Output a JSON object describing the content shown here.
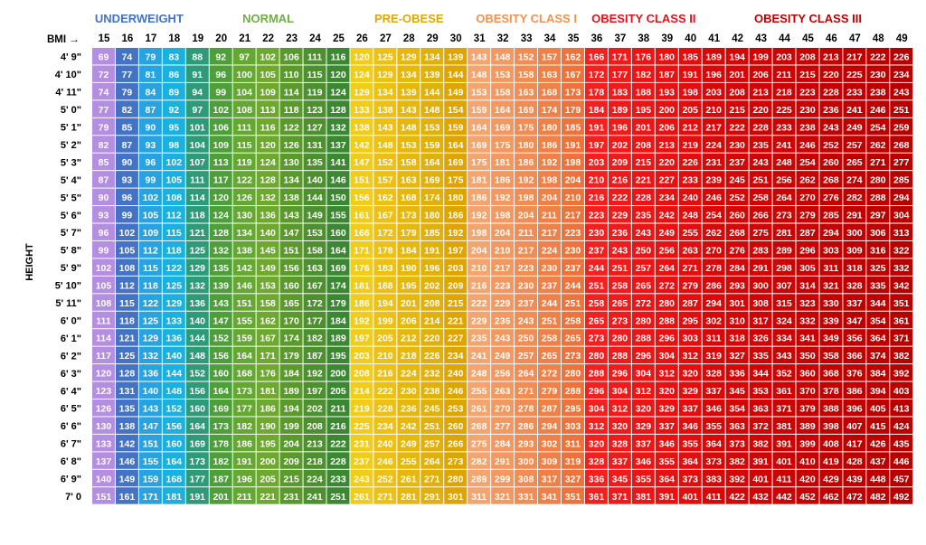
{
  "chart_data": {
    "type": "table",
    "title": "",
    "bmi_label": "BMI →",
    "ylabel": "HEIGHT",
    "bmi": [
      15,
      16,
      17,
      18,
      19,
      20,
      21,
      22,
      23,
      24,
      25,
      26,
      27,
      28,
      29,
      30,
      31,
      32,
      33,
      34,
      35,
      36,
      37,
      38,
      39,
      40,
      41,
      42,
      43,
      44,
      45,
      46,
      47,
      48,
      49
    ],
    "categories": [
      {
        "name": "UNDERWEIGHT",
        "from_bmi": 15,
        "to_bmi": 18,
        "color": "#4472c4"
      },
      {
        "name": "NORMAL",
        "from_bmi": 19,
        "to_bmi": 25,
        "color": "#70ad47"
      },
      {
        "name": "PRE-OBESE",
        "from_bmi": 26,
        "to_bmi": 30,
        "color": "#e0a800"
      },
      {
        "name": "OBESITY CLASS I",
        "from_bmi": 31,
        "to_bmi": 35,
        "color": "#f4914e"
      },
      {
        "name": "OBESITY CLASS II",
        "from_bmi": 36,
        "to_bmi": 40,
        "color": "#e8101a"
      },
      {
        "name": "OBESITY CLASS III",
        "from_bmi": 41,
        "to_bmi": 49,
        "color": "#c00000"
      }
    ],
    "column_colors": [
      "#b48ee0",
      "#4472c4",
      "#29a3df",
      "#1ab0e0",
      "#2e9a78",
      "#4e9e3a",
      "#64a733",
      "#6ea82e",
      "#5a9a2c",
      "#4e9030",
      "#3c8832",
      "#f2cc1a",
      "#ecc014",
      "#e6b80e",
      "#e0b00c",
      "#dea400",
      "#f4a46e",
      "#f29860",
      "#f08c54",
      "#ee8048",
      "#ec743c",
      "#f42020",
      "#f01a1a",
      "#ec1414",
      "#e81010",
      "#e40c0c",
      "#d80808",
      "#d40606",
      "#d00404",
      "#cc0303",
      "#c80202",
      "#c40101",
      "#c00000",
      "#bc0000",
      "#b80000"
    ],
    "rows": [
      {
        "height": "4' 9\"",
        "weights": [
          69,
          74,
          79,
          83,
          88,
          92,
          97,
          102,
          106,
          111,
          116,
          120,
          125,
          129,
          134,
          139,
          143,
          148,
          152,
          157,
          162,
          166,
          171,
          176,
          180,
          185,
          189,
          194,
          199,
          203,
          208,
          213,
          217,
          222,
          226
        ]
      },
      {
        "height": "4' 10\"",
        "weights": [
          72,
          77,
          81,
          86,
          91,
          96,
          100,
          105,
          110,
          115,
          120,
          124,
          129,
          134,
          139,
          144,
          148,
          153,
          158,
          163,
          167,
          172,
          177,
          182,
          187,
          191,
          196,
          201,
          206,
          211,
          215,
          220,
          225,
          230,
          234
        ]
      },
      {
        "height": "4' 11\"",
        "weights": [
          74,
          79,
          84,
          89,
          94,
          99,
          104,
          109,
          114,
          119,
          124,
          129,
          134,
          139,
          144,
          149,
          153,
          158,
          163,
          168,
          173,
          178,
          183,
          188,
          193,
          198,
          203,
          208,
          213,
          218,
          223,
          228,
          233,
          238,
          243
        ]
      },
      {
        "height": "5' 0\"",
        "weights": [
          77,
          82,
          87,
          92,
          97,
          102,
          108,
          113,
          118,
          123,
          128,
          133,
          138,
          143,
          148,
          154,
          159,
          164,
          169,
          174,
          179,
          184,
          189,
          195,
          200,
          205,
          210,
          215,
          220,
          225,
          230,
          236,
          241,
          246,
          251
        ]
      },
      {
        "height": "5' 1\"",
        "weights": [
          79,
          85,
          90,
          95,
          101,
          106,
          111,
          116,
          122,
          127,
          132,
          138,
          143,
          148,
          153,
          159,
          164,
          169,
          175,
          180,
          185,
          191,
          196,
          201,
          206,
          212,
          217,
          222,
          228,
          233,
          238,
          243,
          249,
          254,
          259
        ]
      },
      {
        "height": "5' 2\"",
        "weights": [
          82,
          87,
          93,
          98,
          104,
          109,
          115,
          120,
          126,
          131,
          137,
          142,
          148,
          153,
          159,
          164,
          169,
          175,
          180,
          186,
          191,
          197,
          202,
          208,
          213,
          219,
          224,
          230,
          235,
          241,
          246,
          252,
          257,
          262,
          268
        ]
      },
      {
        "height": "5' 3\"",
        "weights": [
          85,
          90,
          96,
          102,
          107,
          113,
          119,
          124,
          130,
          135,
          141,
          147,
          152,
          158,
          164,
          169,
          175,
          181,
          186,
          192,
          198,
          203,
          209,
          215,
          220,
          226,
          231,
          237,
          243,
          248,
          254,
          260,
          265,
          271,
          277
        ]
      },
      {
        "height": "5' 4\"",
        "weights": [
          87,
          93,
          99,
          105,
          111,
          117,
          122,
          128,
          134,
          140,
          146,
          151,
          157,
          163,
          169,
          175,
          181,
          186,
          192,
          198,
          204,
          210,
          216,
          221,
          227,
          233,
          239,
          245,
          251,
          256,
          262,
          268,
          274,
          280,
          285
        ]
      },
      {
        "height": "5' 5\"",
        "weights": [
          90,
          96,
          102,
          108,
          114,
          120,
          126,
          132,
          138,
          144,
          150,
          156,
          162,
          168,
          174,
          180,
          186,
          192,
          198,
          204,
          210,
          216,
          222,
          228,
          234,
          240,
          246,
          252,
          258,
          264,
          270,
          276,
          282,
          288,
          294
        ]
      },
      {
        "height": "5' 6\"",
        "weights": [
          93,
          99,
          105,
          112,
          118,
          124,
          130,
          136,
          143,
          149,
          155,
          161,
          167,
          173,
          180,
          186,
          192,
          198,
          204,
          211,
          217,
          223,
          229,
          235,
          242,
          248,
          254,
          260,
          266,
          273,
          279,
          285,
          291,
          297,
          304
        ]
      },
      {
        "height": "5' 7\"",
        "weights": [
          96,
          102,
          109,
          115,
          121,
          128,
          134,
          140,
          147,
          153,
          160,
          166,
          172,
          179,
          185,
          192,
          198,
          204,
          211,
          217,
          223,
          230,
          236,
          243,
          249,
          255,
          262,
          268,
          275,
          281,
          287,
          294,
          300,
          306,
          313
        ]
      },
      {
        "height": "5' 8\"",
        "weights": [
          99,
          105,
          112,
          118,
          125,
          132,
          138,
          145,
          151,
          158,
          164,
          171,
          178,
          184,
          191,
          197,
          204,
          210,
          217,
          224,
          230,
          237,
          243,
          250,
          256,
          263,
          270,
          276,
          283,
          289,
          296,
          303,
          309,
          316,
          322
        ]
      },
      {
        "height": "5' 9\"",
        "weights": [
          102,
          108,
          115,
          122,
          129,
          135,
          142,
          149,
          156,
          163,
          169,
          176,
          183,
          190,
          196,
          203,
          210,
          217,
          223,
          230,
          237,
          244,
          251,
          257,
          264,
          271,
          278,
          284,
          291,
          298,
          305,
          311,
          318,
          325,
          332
        ]
      },
      {
        "height": "5' 10\"",
        "weights": [
          105,
          112,
          118,
          125,
          132,
          139,
          146,
          153,
          160,
          167,
          174,
          181,
          188,
          195,
          202,
          209,
          216,
          223,
          230,
          237,
          244,
          251,
          258,
          265,
          272,
          279,
          286,
          293,
          300,
          307,
          314,
          321,
          328,
          335,
          342
        ]
      },
      {
        "height": "5' 11\"",
        "weights": [
          108,
          115,
          122,
          129,
          136,
          143,
          151,
          158,
          165,
          172,
          179,
          186,
          194,
          201,
          208,
          215,
          222,
          229,
          237,
          244,
          251,
          258,
          265,
          272,
          280,
          287,
          294,
          301,
          308,
          315,
          323,
          330,
          337,
          344,
          351
        ]
      },
      {
        "height": "6' 0\"",
        "weights": [
          111,
          118,
          125,
          133,
          140,
          147,
          155,
          162,
          170,
          177,
          184,
          192,
          199,
          206,
          214,
          221,
          229,
          236,
          243,
          251,
          258,
          265,
          273,
          280,
          288,
          295,
          302,
          310,
          317,
          324,
          332,
          339,
          347,
          354,
          361
        ]
      },
      {
        "height": "6' 1\"",
        "weights": [
          114,
          121,
          129,
          136,
          144,
          152,
          159,
          167,
          174,
          182,
          189,
          197,
          205,
          212,
          220,
          227,
          235,
          243,
          250,
          258,
          265,
          273,
          280,
          288,
          296,
          303,
          311,
          318,
          326,
          334,
          341,
          349,
          356,
          364,
          371
        ]
      },
      {
        "height": "6' 2\"",
        "weights": [
          117,
          125,
          132,
          140,
          148,
          156,
          164,
          171,
          179,
          187,
          195,
          203,
          210,
          218,
          226,
          234,
          241,
          249,
          257,
          265,
          273,
          280,
          288,
          296,
          304,
          312,
          319,
          327,
          335,
          343,
          350,
          358,
          366,
          374,
          382
        ]
      },
      {
        "height": "6' 3\"",
        "weights": [
          120,
          128,
          136,
          144,
          152,
          160,
          168,
          176,
          184,
          192,
          200,
          208,
          216,
          224,
          232,
          240,
          248,
          256,
          264,
          272,
          280,
          288,
          296,
          304,
          312,
          320,
          328,
          336,
          344,
          352,
          360,
          368,
          376,
          384,
          392
        ]
      },
      {
        "height": "6' 4\"",
        "weights": [
          123,
          131,
          140,
          148,
          156,
          164,
          173,
          181,
          189,
          197,
          205,
          214,
          222,
          230,
          238,
          246,
          255,
          263,
          271,
          279,
          288,
          296,
          304,
          312,
          320,
          329,
          337,
          345,
          353,
          361,
          370,
          378,
          386,
          394,
          403
        ]
      },
      {
        "height": "6' 5\"",
        "weights": [
          126,
          135,
          143,
          152,
          160,
          169,
          177,
          186,
          194,
          202,
          211,
          219,
          228,
          236,
          245,
          253,
          261,
          270,
          278,
          287,
          295,
          304,
          312,
          320,
          329,
          337,
          346,
          354,
          363,
          371,
          379,
          388,
          396,
          405,
          413
        ]
      },
      {
        "height": "6' 6\"",
        "weights": [
          130,
          138,
          147,
          156,
          164,
          173,
          182,
          190,
          199,
          208,
          216,
          225,
          234,
          242,
          251,
          260,
          268,
          277,
          286,
          294,
          303,
          312,
          320,
          329,
          337,
          346,
          355,
          363,
          372,
          381,
          389,
          398,
          407,
          415,
          424
        ]
      },
      {
        "height": "6' 7\"",
        "weights": [
          133,
          142,
          151,
          160,
          169,
          178,
          186,
          195,
          204,
          213,
          222,
          231,
          240,
          249,
          257,
          266,
          275,
          284,
          293,
          302,
          311,
          320,
          328,
          337,
          346,
          355,
          364,
          373,
          382,
          391,
          399,
          408,
          417,
          426,
          435
        ]
      },
      {
        "height": "6' 8\"",
        "weights": [
          137,
          146,
          155,
          164,
          173,
          182,
          191,
          200,
          209,
          218,
          228,
          237,
          246,
          255,
          264,
          273,
          282,
          291,
          300,
          309,
          319,
          328,
          337,
          346,
          355,
          364,
          373,
          382,
          391,
          401,
          410,
          419,
          428,
          437,
          446
        ]
      },
      {
        "height": "6' 9\"",
        "weights": [
          140,
          149,
          159,
          168,
          177,
          187,
          196,
          205,
          215,
          224,
          233,
          243,
          252,
          261,
          271,
          280,
          289,
          299,
          308,
          317,
          327,
          336,
          345,
          355,
          364,
          373,
          383,
          392,
          401,
          411,
          420,
          429,
          439,
          448,
          457
        ]
      },
      {
        "height": "7' 0",
        "weights": [
          151,
          161,
          171,
          181,
          191,
          201,
          211,
          221,
          231,
          241,
          251,
          261,
          271,
          281,
          291,
          301,
          311,
          321,
          331,
          341,
          351,
          361,
          371,
          381,
          391,
          401,
          411,
          422,
          432,
          442,
          452,
          462,
          472,
          482,
          492
        ]
      }
    ]
  }
}
